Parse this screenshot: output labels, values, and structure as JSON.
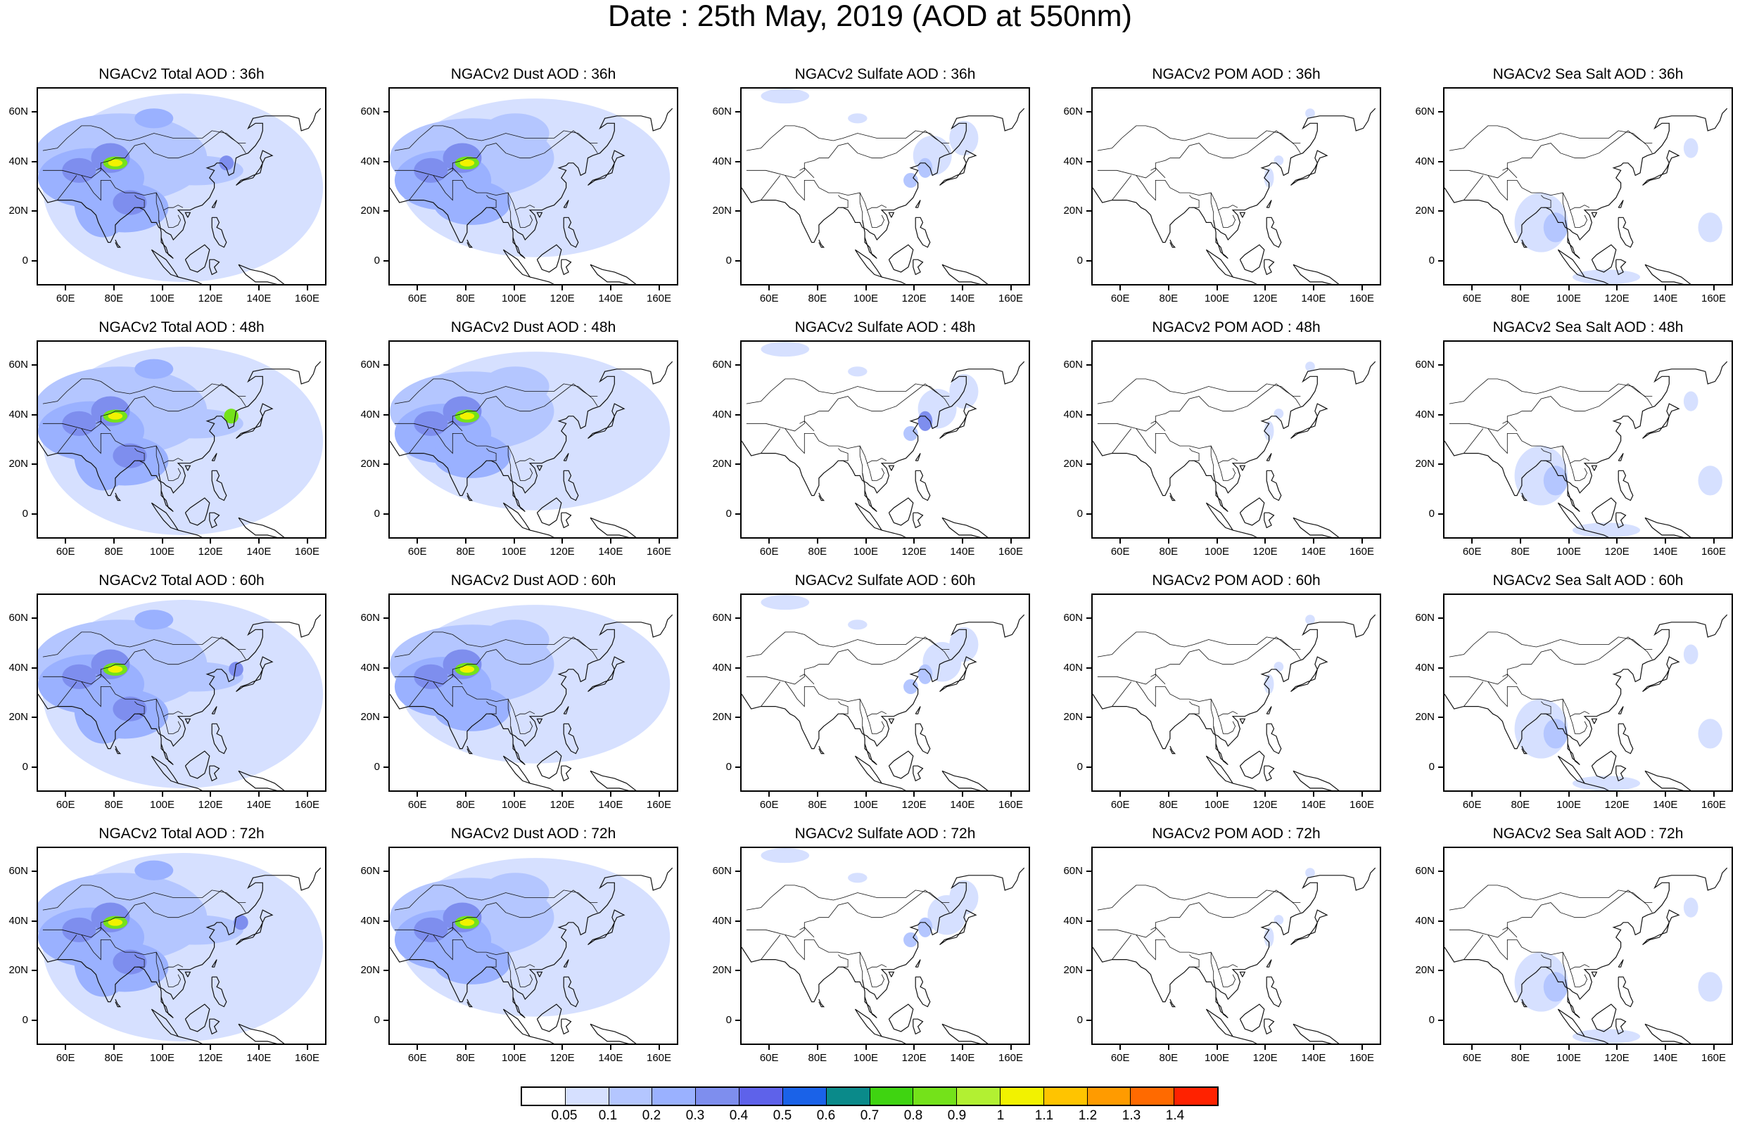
{
  "title": "Date : 25th May, 2019 (AOD at 550nm)",
  "map": {
    "lon_range": [
      48,
      168
    ],
    "lat_range": [
      -10,
      70
    ],
    "lon_tick_labels": [
      "60E",
      "80E",
      "100E",
      "120E",
      "140E",
      "160E"
    ],
    "lat_tick_labels": [
      "0",
      "20N",
      "40N",
      "60N"
    ]
  },
  "species": [
    "Total",
    "Dust",
    "Sulfate",
    "POM",
    "Sea Salt"
  ],
  "lead_times": [
    "36h",
    "48h",
    "60h",
    "72h"
  ],
  "panels": [
    [
      {
        "title": "NGACv2 Total AOD : 36h",
        "species": "Total",
        "lead": "36h"
      },
      {
        "title": "NGACv2 Dust AOD : 36h",
        "species": "Dust",
        "lead": "36h"
      },
      {
        "title": "NGACv2 Sulfate AOD : 36h",
        "species": "Sulfate",
        "lead": "36h"
      },
      {
        "title": "NGACv2 POM AOD : 36h",
        "species": "POM",
        "lead": "36h"
      },
      {
        "title": "NGACv2 Sea Salt AOD : 36h",
        "species": "Sea Salt",
        "lead": "36h"
      }
    ],
    [
      {
        "title": "NGACv2 Total AOD : 48h",
        "species": "Total",
        "lead": "48h"
      },
      {
        "title": "NGACv2 Dust AOD : 48h",
        "species": "Dust",
        "lead": "48h"
      },
      {
        "title": "NGACv2 Sulfate AOD : 48h",
        "species": "Sulfate",
        "lead": "48h"
      },
      {
        "title": "NGACv2 POM AOD : 48h",
        "species": "POM",
        "lead": "48h"
      },
      {
        "title": "NGACv2 Sea Salt AOD : 48h",
        "species": "Sea Salt",
        "lead": "48h"
      }
    ],
    [
      {
        "title": "NGACv2 Total AOD : 60h",
        "species": "Total",
        "lead": "60h"
      },
      {
        "title": "NGACv2 Dust AOD : 60h",
        "species": "Dust",
        "lead": "60h"
      },
      {
        "title": "NGACv2 Sulfate AOD : 60h",
        "species": "Sulfate",
        "lead": "60h"
      },
      {
        "title": "NGACv2 POM AOD : 60h",
        "species": "POM",
        "lead": "60h"
      },
      {
        "title": "NGACv2 Sea Salt AOD : 60h",
        "species": "Sea Salt",
        "lead": "60h"
      }
    ],
    [
      {
        "title": "NGACv2 Total AOD : 72h",
        "species": "Total",
        "lead": "72h"
      },
      {
        "title": "NGACv2 Dust AOD : 72h",
        "species": "Dust",
        "lead": "72h"
      },
      {
        "title": "NGACv2 Sulfate AOD : 72h",
        "species": "Sulfate",
        "lead": "72h"
      },
      {
        "title": "NGACv2 POM AOD : 72h",
        "species": "POM",
        "lead": "72h"
      },
      {
        "title": "NGACv2 Sea Salt  AOD : 72h",
        "species": "Sea Salt",
        "lead": "72h"
      }
    ]
  ],
  "colorbar": {
    "labels": [
      "0.05",
      "0.1",
      "0.2",
      "0.3",
      "0.4",
      "0.5",
      "0.6",
      "0.7",
      "0.8",
      "0.9",
      "1",
      "1.1",
      "1.2",
      "1.3",
      "1.4"
    ],
    "colors": [
      "#ffffff",
      "#d6e0ff",
      "#b4c6ff",
      "#9ab1ff",
      "#7e8eee",
      "#5e62ea",
      "#1a62e8",
      "#0a8a8a",
      "#3fd411",
      "#74e21a",
      "#b2f032",
      "#f2f200",
      "#ffc400",
      "#ff9b00",
      "#ff6a00",
      "#ff2200"
    ]
  }
}
